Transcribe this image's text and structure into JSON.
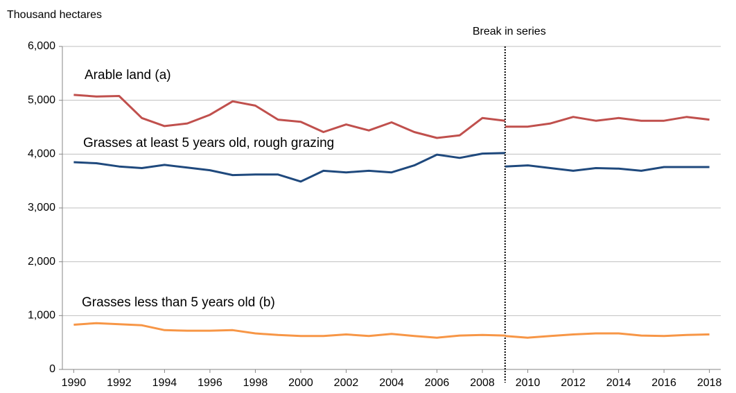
{
  "chart_data": {
    "type": "line",
    "y_axis_label": "Thousand hectares",
    "break_annotation": {
      "x": 2009,
      "label": "Break in series"
    },
    "x": [
      1990,
      1991,
      1992,
      1993,
      1994,
      1995,
      1996,
      1997,
      1998,
      1999,
      2000,
      2001,
      2002,
      2003,
      2004,
      2005,
      2006,
      2007,
      2008,
      2009,
      2009,
      2010,
      2011,
      2012,
      2013,
      2014,
      2015,
      2016,
      2017,
      2018
    ],
    "series": [
      {
        "name": "Arable land (a)",
        "color": "#c0504d",
        "values": [
          5100,
          5070,
          5080,
          4670,
          4520,
          4570,
          4730,
          4980,
          4900,
          4640,
          4600,
          4410,
          4550,
          4440,
          4590,
          4410,
          4300,
          4350,
          4670,
          4620,
          4510,
          4510,
          4570,
          4690,
          4620,
          4670,
          4620,
          4620,
          4690,
          4640
        ]
      },
      {
        "name": "Grasses at least 5 years old, rough grazing",
        "color": "#1f497d",
        "values": [
          3850,
          3830,
          3770,
          3740,
          3800,
          3750,
          3700,
          3610,
          3620,
          3620,
          3490,
          3690,
          3660,
          3690,
          3660,
          3790,
          3990,
          3930,
          4010,
          4020,
          3770,
          3790,
          3740,
          3690,
          3740,
          3730,
          3690,
          3760,
          3760,
          3760
        ]
      },
      {
        "name": "Grasses less than 5 years old (b)",
        "color": "#f79646",
        "values": [
          830,
          860,
          840,
          820,
          730,
          720,
          720,
          730,
          670,
          640,
          620,
          620,
          650,
          620,
          660,
          620,
          590,
          630,
          640,
          630,
          620,
          590,
          620,
          650,
          670,
          670,
          630,
          620,
          640,
          650
        ]
      }
    ],
    "xlim": [
      1989.5,
      2018.5
    ],
    "xticks": [
      1990,
      1992,
      1994,
      1996,
      1998,
      2000,
      2002,
      2004,
      2006,
      2008,
      2010,
      2012,
      2014,
      2016,
      2018
    ],
    "ylim": [
      0,
      6000
    ],
    "yticks": [
      0,
      {
        "value": 1000,
        "label": "1,000"
      },
      {
        "value": 2000,
        "label": "2,000"
      },
      {
        "value": 3000,
        "label": "3,000"
      },
      {
        "value": 4000,
        "label": "4,000"
      },
      {
        "value": 5000,
        "label": "5,000"
      },
      {
        "value": 6000,
        "label": "6,000"
      }
    ],
    "grid": true
  }
}
